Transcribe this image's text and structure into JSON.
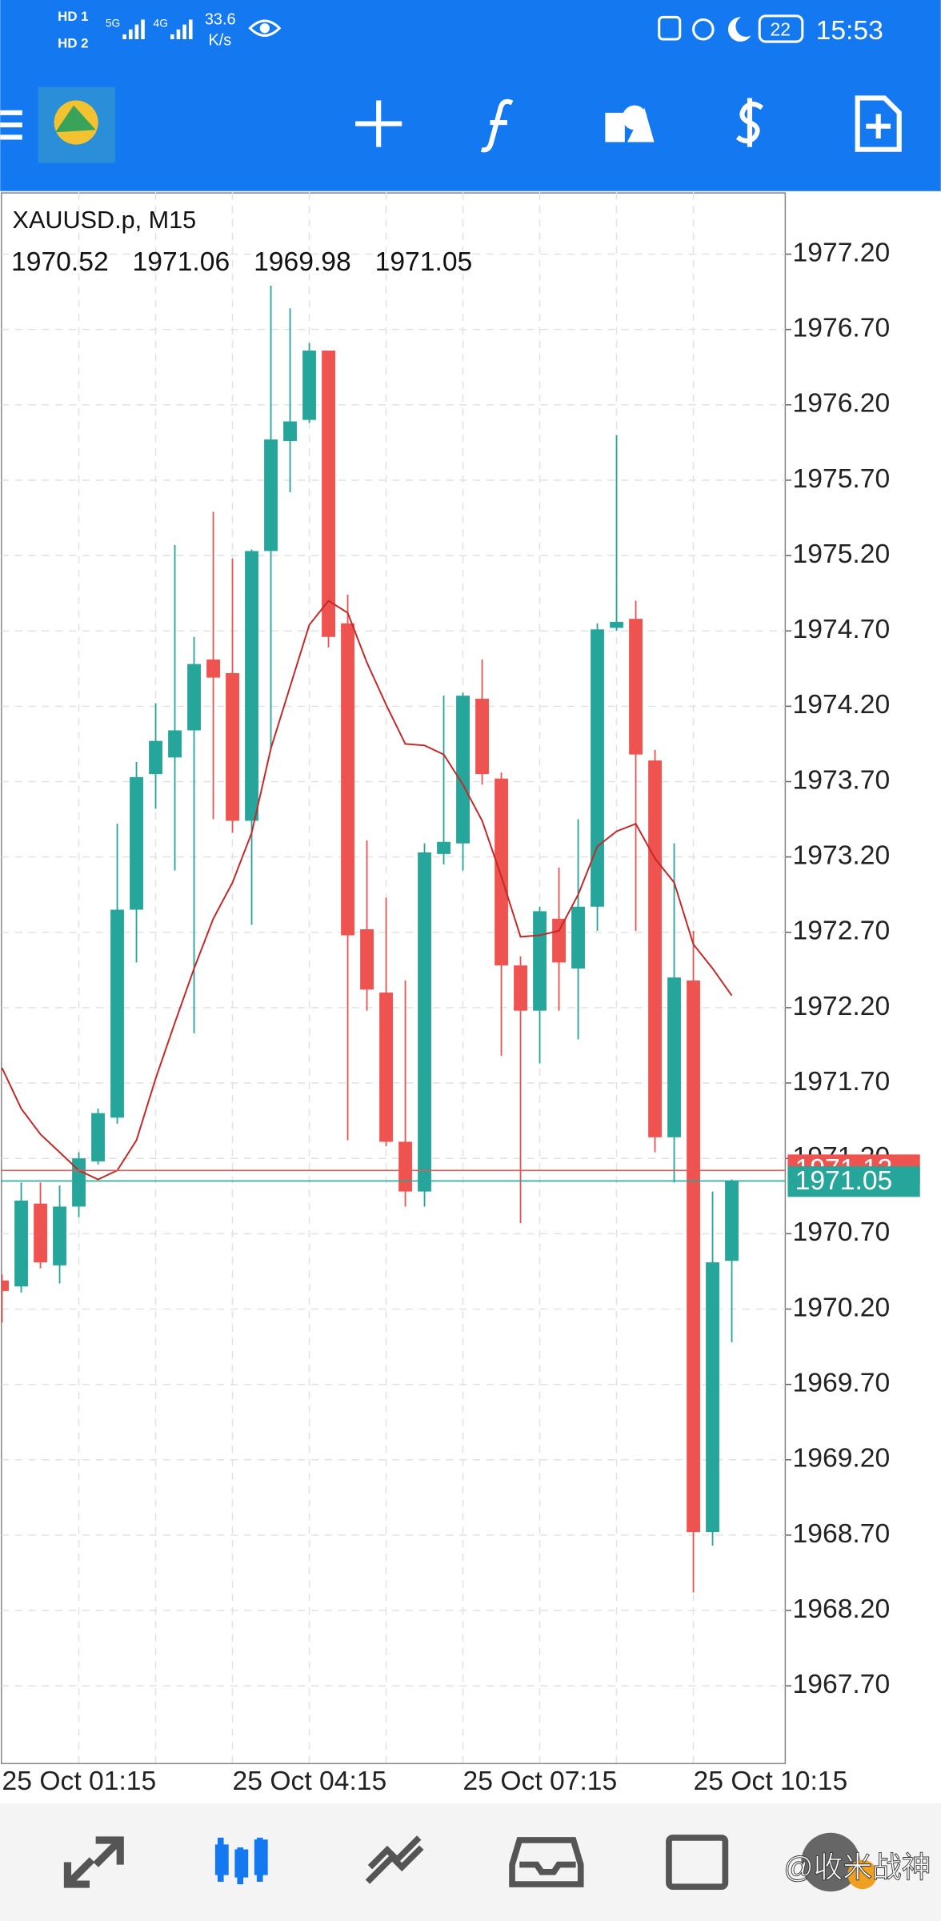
{
  "status_bar": {
    "sim1": "HD 1",
    "sim2": "HD 2",
    "net1": "5G",
    "net2": "4G",
    "speed": "33.6",
    "speed_unit": "K/s",
    "battery": "22",
    "time": "15:53"
  },
  "watermark": "@收米战神",
  "chart_data": {
    "type": "candlestick",
    "title": "XAUUSD.p, M15",
    "categories": [
      "25 Oct 01:15",
      null,
      null,
      null,
      null,
      null,
      null,
      null,
      null,
      null,
      null,
      null,
      "25 Oct 04:15",
      null,
      null,
      null,
      null,
      null,
      null,
      null,
      null,
      null,
      null,
      null,
      "25 Oct 07:15",
      null,
      null,
      null,
      null,
      null,
      null,
      null,
      null,
      null,
      null,
      null,
      "25 Oct 10:15",
      null,
      null
    ],
    "open": [
      1970.39,
      1970.35,
      1970.9,
      1970.49,
      1970.88,
      1971.18,
      1971.47,
      1972.85,
      1973.75,
      1973.86,
      1974.04,
      1974.51,
      1974.42,
      1973.44,
      1975.23,
      1975.96,
      1976.1,
      1976.56,
      1974.75,
      1972.72,
      1972.3,
      1971.31,
      1970.98,
      1973.22,
      1973.29,
      1974.25,
      1973.72,
      1972.48,
      1972.18,
      1972.79,
      1972.46,
      1972.87,
      1974.72,
      1974.78,
      1973.84,
      1971.34,
      1972.38,
      1968.72,
      1970.52
    ],
    "high": [
      1970.43,
      1971.04,
      1971.04,
      1971.02,
      1971.24,
      1971.53,
      1973.42,
      1973.83,
      1974.22,
      1975.27,
      1974.66,
      1975.49,
      1975.18,
      1975.24,
      1976.99,
      1976.84,
      1976.61,
      1976.56,
      1974.94,
      1973.31,
      1972.93,
      1972.38,
      1973.29,
      1974.27,
      1974.29,
      1974.51,
      1973.76,
      1972.54,
      1972.87,
      1973.13,
      1973.45,
      1974.75,
      1976,
      1974.9,
      1973.91,
      1973.29,
      1972.71,
      1970.98,
      1971.06
    ],
    "low": [
      1970.11,
      1970.31,
      1970.47,
      1970.37,
      1970.81,
      1971.16,
      1971.43,
      1972.5,
      1973.52,
      1973.11,
      1972.03,
      1973.45,
      1973.36,
      1972.75,
      1973.92,
      1975.62,
      1976.08,
      1974.59,
      1971.32,
      1972.18,
      1971.28,
      1970.88,
      1970.88,
      1973.15,
      1973.11,
      1973.68,
      1971.88,
      1970.77,
      1971.83,
      1972.18,
      1971.99,
      1972.71,
      1974.7,
      1972.71,
      1971.24,
      1971.04,
      1968.32,
      1968.63,
      1969.98
    ],
    "close": [
      1970.32,
      1970.92,
      1970.51,
      1970.88,
      1971.2,
      1971.5,
      1972.85,
      1973.73,
      1973.97,
      1974.04,
      1974.48,
      1974.39,
      1973.44,
      1975.23,
      1975.97,
      1976.09,
      1976.56,
      1974.66,
      1972.68,
      1972.32,
      1971.31,
      1970.98,
      1973.23,
      1973.3,
      1974.27,
      1973.75,
      1972.48,
      1972.18,
      1972.84,
      1972.5,
      1972.87,
      1974.71,
      1974.76,
      1973.88,
      1971.34,
      1972.4,
      1968.72,
      1970.51,
      1971.05
    ],
    "up_color": "#26a69a",
    "down_color": "#ef5350",
    "moving_average": {
      "color": "#c62828",
      "values": [
        1971.8,
        1971.53,
        1971.36,
        1971.24,
        1971.12,
        1971.06,
        1971.12,
        1971.32,
        1971.73,
        1972.1,
        1972.46,
        1972.79,
        1973.03,
        1973.36,
        1973.92,
        1974.33,
        1974.74,
        1974.9,
        1974.82,
        1974.49,
        1974.21,
        1973.95,
        1973.94,
        1973.88,
        1973.68,
        1973.44,
        1973.07,
        1972.67,
        1972.68,
        1972.71,
        1972.95,
        1973.27,
        1973.37,
        1973.42,
        1973.19,
        1973.03,
        1972.62,
        1972.46,
        1972.28
      ]
    },
    "bid": 1971.05,
    "ask": 1971.12,
    "ylim": [
      1967.18,
      1977.61
    ],
    "yticks": [
      {
        "value": 1977.2,
        "label": "1977.20"
      },
      {
        "value": 1976.7,
        "label": "1976.70"
      },
      {
        "value": 1976.2,
        "label": "1976.20"
      },
      {
        "value": 1975.7,
        "label": "1975.70"
      },
      {
        "value": 1975.2,
        "label": "1975.20"
      },
      {
        "value": 1974.7,
        "label": "1974.70"
      },
      {
        "value": 1974.2,
        "label": "1974.20"
      },
      {
        "value": 1973.7,
        "label": "1973.70"
      },
      {
        "value": 1973.2,
        "label": "1973.20"
      },
      {
        "value": 1972.7,
        "label": "1972.70"
      },
      {
        "value": 1972.2,
        "label": "1972.20"
      },
      {
        "value": 1971.7,
        "label": "1971.70"
      },
      {
        "value": 1971.2,
        "label": "1971.20"
      },
      {
        "value": 1970.7,
        "label": "1970.70"
      },
      {
        "value": 1970.2,
        "label": "1970.20"
      },
      {
        "value": 1969.7,
        "label": "1969.70"
      },
      {
        "value": 1969.2,
        "label": "1969.20"
      },
      {
        "value": 1968.7,
        "label": "1968.70"
      },
      {
        "value": 1968.2,
        "label": "1968.20"
      },
      {
        "value": 1967.7,
        "label": "1967.70"
      }
    ],
    "grid": true
  }
}
